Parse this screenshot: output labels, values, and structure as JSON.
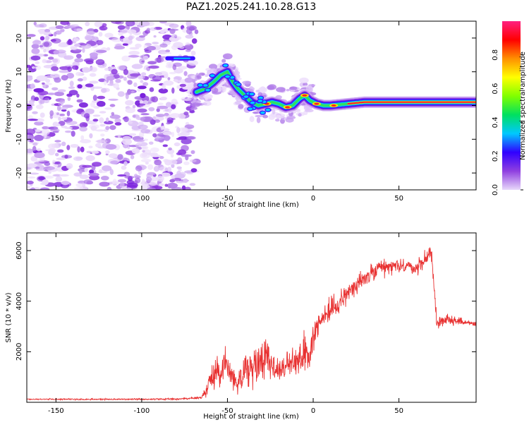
{
  "title": "PAZ1.2025.241.10.28.G13",
  "chart_data": [
    {
      "type": "heatmap",
      "title": "PAZ1.2025.241.10.28.G13",
      "xlabel": "Height of straight line (km)",
      "ylabel": "Frequency (Hz)",
      "xlim": [
        -167,
        95
      ],
      "ylim": [
        -25,
        25
      ],
      "xticks": [
        -150,
        -100,
        -50,
        0,
        50
      ],
      "yticks": [
        -20,
        -10,
        0,
        10,
        20
      ],
      "ridge": {
        "x": [
          -68,
          -63,
          -58,
          -54,
          -50,
          -47,
          -44,
          -40,
          -36,
          -32,
          -28,
          -24,
          -20,
          -16,
          -12,
          -8,
          -5,
          -2,
          2,
          6,
          10,
          20,
          30,
          50,
          70,
          95
        ],
        "y": [
          4,
          5,
          7,
          9,
          10,
          7,
          5,
          3,
          1,
          0,
          0.5,
          1,
          0.5,
          -0.5,
          0,
          2,
          3,
          1.5,
          0.5,
          0,
          0,
          0.5,
          1,
          1,
          1,
          1
        ]
      },
      "branch": {
        "x": [
          -85,
          -70
        ],
        "y": [
          14,
          14
        ]
      },
      "colorbar": {
        "label": "Normalized spectral amplitude",
        "ticks": [
          "0.0",
          "0.2",
          "0.4",
          "0.6",
          "0.8"
        ],
        "colors": [
          "#e8d8fa",
          "#9040e0",
          "#3000ff",
          "#00c8ff",
          "#00e060",
          "#80ff00",
          "#ffff00",
          "#ff9000",
          "#ff0000",
          "#ff2080"
        ]
      }
    },
    {
      "type": "line",
      "xlabel": "Height of straight line (km)",
      "ylabel": "SNR (10 * v/v)",
      "xlim": [
        -167,
        95
      ],
      "ylim": [
        0,
        6700
      ],
      "xticks": [
        -150,
        -100,
        -50,
        0,
        50
      ],
      "yticks": [
        2000,
        4000,
        6000
      ],
      "color": "#e83030",
      "envelope": {
        "x": [
          -167,
          -150,
          -120,
          -100,
          -80,
          -65,
          -62,
          -58,
          -52,
          -48,
          -45,
          -40,
          -35,
          -30,
          -26,
          -22,
          -18,
          -12,
          -8,
          -5,
          -2,
          0,
          2,
          6,
          10,
          15,
          20,
          30,
          40,
          50,
          60,
          66,
          69,
          72,
          74,
          78,
          85,
          95
        ],
        "mean": [
          120,
          120,
          120,
          120,
          130,
          180,
          600,
          1100,
          1500,
          1300,
          700,
          1400,
          1300,
          1800,
          1900,
          1200,
          1400,
          1500,
          1700,
          2100,
          1800,
          2600,
          3000,
          3400,
          3600,
          4000,
          4300,
          4900,
          5300,
          5400,
          5300,
          5700,
          6000,
          3200,
          3100,
          3300,
          3200,
          3100
        ],
        "amp": [
          40,
          40,
          40,
          40,
          40,
          80,
          500,
          800,
          900,
          800,
          700,
          1000,
          1000,
          1400,
          1200,
          800,
          800,
          900,
          800,
          1100,
          900,
          900,
          800,
          700,
          700,
          700,
          600,
          600,
          500,
          400,
          400,
          500,
          600,
          400,
          300,
          300,
          200,
          150
        ]
      }
    }
  ]
}
